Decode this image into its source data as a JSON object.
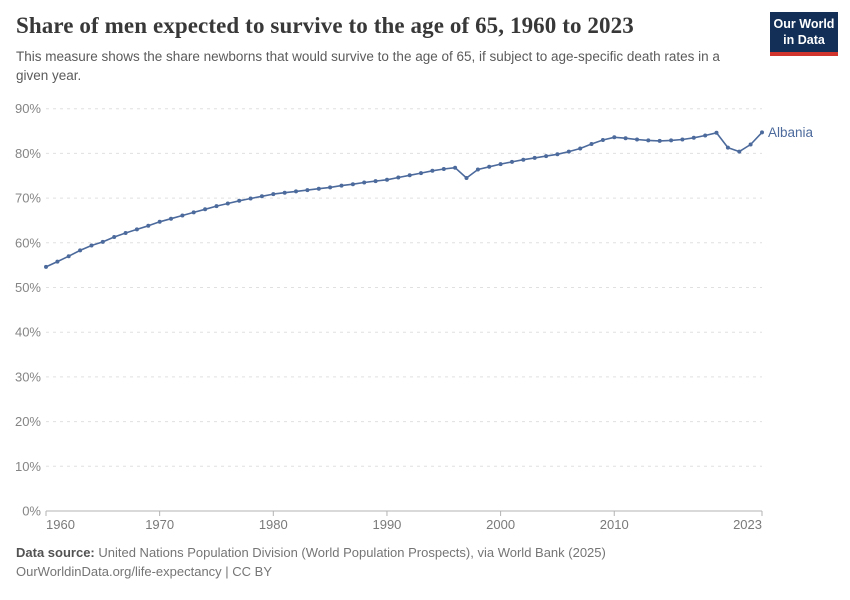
{
  "header": {
    "title": "Share of men expected to survive to the age of 65, 1960 to 2023",
    "subtitle": "This measure shows the share newborns that would survive to the age of 65, if subject to age-specific death rates in a given year."
  },
  "logo": {
    "line1": "Our World",
    "line2": "in Data",
    "bg_color": "#132F57",
    "accent_color": "#D0342C"
  },
  "chart_data": {
    "type": "line",
    "title": "Share of men expected to survive to the age of 65, 1960 to 2023",
    "xlabel": "",
    "ylabel": "",
    "unit": "%",
    "xlim": [
      1960,
      2023
    ],
    "ylim": [
      0,
      90
    ],
    "xticks": [
      1960,
      1970,
      1980,
      1990,
      2000,
      2010,
      2023
    ],
    "yticks": [
      0,
      10,
      20,
      30,
      40,
      50,
      60,
      70,
      80,
      90
    ],
    "ytick_suffix": "%",
    "grid": "dashed-horizontal",
    "legend_position": "end-of-line-label",
    "end_label": "Albania",
    "series": [
      {
        "name": "Albania",
        "color": "#4C6A9C",
        "x": [
          1960,
          1961,
          1962,
          1963,
          1964,
          1965,
          1966,
          1967,
          1968,
          1969,
          1970,
          1971,
          1972,
          1973,
          1974,
          1975,
          1976,
          1977,
          1978,
          1979,
          1980,
          1981,
          1982,
          1983,
          1984,
          1985,
          1986,
          1987,
          1988,
          1989,
          1990,
          1991,
          1992,
          1993,
          1994,
          1995,
          1996,
          1997,
          1998,
          1999,
          2000,
          2001,
          2002,
          2003,
          2004,
          2005,
          2006,
          2007,
          2008,
          2009,
          2010,
          2011,
          2012,
          2013,
          2014,
          2015,
          2016,
          2017,
          2018,
          2019,
          2020,
          2021,
          2022,
          2023
        ],
        "values": [
          54.6,
          55.8,
          57.0,
          58.3,
          59.4,
          60.2,
          61.3,
          62.2,
          63.0,
          63.8,
          64.7,
          65.4,
          66.1,
          66.8,
          67.5,
          68.2,
          68.8,
          69.4,
          69.9,
          70.4,
          70.9,
          71.2,
          71.5,
          71.8,
          72.1,
          72.4,
          72.8,
          73.1,
          73.5,
          73.8,
          74.1,
          74.6,
          75.1,
          75.6,
          76.1,
          76.5,
          76.8,
          74.5,
          76.4,
          77.0,
          77.6,
          78.1,
          78.6,
          79.0,
          79.4,
          79.8,
          80.4,
          81.1,
          82.1,
          83.0,
          83.6,
          83.4,
          83.1,
          82.9,
          82.8,
          82.9,
          83.1,
          83.5,
          84.0,
          84.6,
          81.3,
          80.4,
          82.0,
          84.7
        ]
      }
    ]
  },
  "axis_colors": {
    "axis_line": "#b3b3b3",
    "gridline": "#e0e0e0",
    "y_label": "#858585",
    "x_label": "#7a7a7a"
  },
  "footer": {
    "source_label": "Data source:",
    "source_text": " United Nations Population Division (World Population Prospects), via World Bank (2025)",
    "link_line": "OurWorldinData.org/life-expectancy | CC BY"
  }
}
